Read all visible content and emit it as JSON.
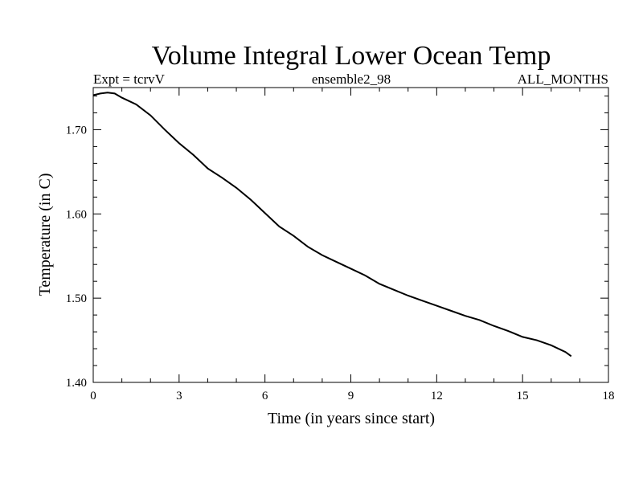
{
  "chart_data": {
    "type": "line",
    "title": "Volume Integral Lower Ocean Temp",
    "subtitle_left": "Expt = tcrvV",
    "subtitle_center": "ensemble2_98",
    "subtitle_right": "ALL_MONTHS",
    "xlabel": "Time (in years since start)",
    "ylabel": "Temperature (in C)",
    "xlim": [
      0,
      18
    ],
    "ylim": [
      1.4,
      1.75
    ],
    "xticks": [
      0,
      3,
      6,
      9,
      12,
      15,
      18
    ],
    "xtick_labels": [
      "0",
      "3",
      "6",
      "9",
      "12",
      "15",
      "18"
    ],
    "yticks": [
      1.4,
      1.5,
      1.6,
      1.7
    ],
    "ytick_labels": [
      "1.40",
      "1.50",
      "1.60",
      "1.70"
    ],
    "grid": false,
    "line_color": "#000000",
    "series": [
      {
        "x": [
          0,
          0.25,
          0.5,
          0.75,
          1.0,
          1.5,
          2.0,
          2.5,
          3.0,
          3.5,
          4.0,
          4.5,
          5.0,
          5.5,
          6.0,
          6.5,
          7.0,
          7.5,
          8.0,
          8.5,
          9.0,
          9.5,
          10.0,
          10.5,
          11.0,
          11.5,
          12.0,
          12.5,
          13.0,
          13.5,
          14.0,
          14.5,
          15.0,
          15.5,
          16.0,
          16.5,
          16.7
        ],
        "y": [
          1.741,
          1.743,
          1.744,
          1.743,
          1.738,
          1.73,
          1.717,
          1.7,
          1.684,
          1.67,
          1.654,
          1.643,
          1.631,
          1.617,
          1.601,
          1.585,
          1.574,
          1.561,
          1.551,
          1.543,
          1.535,
          1.527,
          1.517,
          1.51,
          1.503,
          1.497,
          1.491,
          1.485,
          1.479,
          1.474,
          1.467,
          1.461,
          1.454,
          1.45,
          1.444,
          1.436,
          1.431
        ]
      }
    ]
  }
}
